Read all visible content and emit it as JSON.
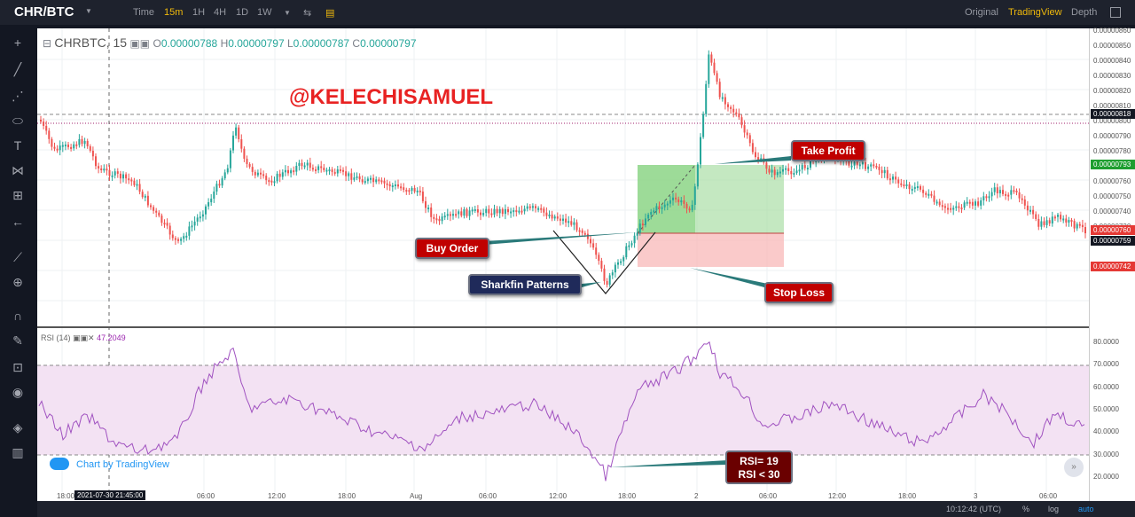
{
  "header": {
    "symbol": "CHR/BTC",
    "timeframes": [
      "Time",
      "15m",
      "1H",
      "4H",
      "1D",
      "1W"
    ],
    "active_timeframe": "15m",
    "views": [
      "Original",
      "TradingView",
      "Depth"
    ],
    "active_view": "TradingView"
  },
  "legend": {
    "symbol": "CHRBTC, 15",
    "o_label": "O",
    "o_value": "0.00000788",
    "h_label": "H",
    "h_value": "0.00000797",
    "l_label": "L",
    "l_value": "0.00000787",
    "c_label": "C",
    "c_value": "0.00000797"
  },
  "watermark": "@KELECHISAMUEL",
  "annotations": {
    "take_profit": "Take Profit",
    "buy_order": "Buy Order",
    "sharkfin": "Sharkfin Patterns",
    "stop_loss": "Stop Loss",
    "rsi_line1": "RSI= 19",
    "rsi_line2": "RSI < 30"
  },
  "rsi": {
    "label": "RSI (14)",
    "value": "47.2049"
  },
  "branding": "Chart by TradingView",
  "price_axis": [
    "0.00000860",
    "0.00000850",
    "0.00000840",
    "0.00000830",
    "0.00000820",
    "0.00000810",
    "0.00000800",
    "0.00000790",
    "0.00000780",
    "0.00000770",
    "0.00000760",
    "0.00000750",
    "0.00000740",
    "0.00000730",
    "0.00000720"
  ],
  "price_tags": {
    "t1": "0.00000818",
    "t2": "0.00000793",
    "t3": "0.00000760",
    "t4": "0.00000759",
    "t5": "0.00000742"
  },
  "rsi_axis": [
    "80.0000",
    "70.0000",
    "60.0000",
    "50.0000",
    "40.0000",
    "30.0000",
    "20.0000"
  ],
  "time_axis": [
    "18:00",
    "06:00",
    "12:00",
    "18:00",
    "Aug",
    "06:00",
    "12:00",
    "18:00",
    "2",
    "06:00",
    "12:00",
    "18:00",
    "3",
    "06:00"
  ],
  "crosshair_time": "2021-07-30 21:45:00",
  "footer": {
    "clock": "10:12:42 (UTC)",
    "percent": "%",
    "log": "log",
    "auto": "auto"
  },
  "colors": {
    "up": "#26a69a",
    "down": "#ef5350",
    "rsi": "#9c27b0",
    "accent": "#f0b90b"
  }
}
